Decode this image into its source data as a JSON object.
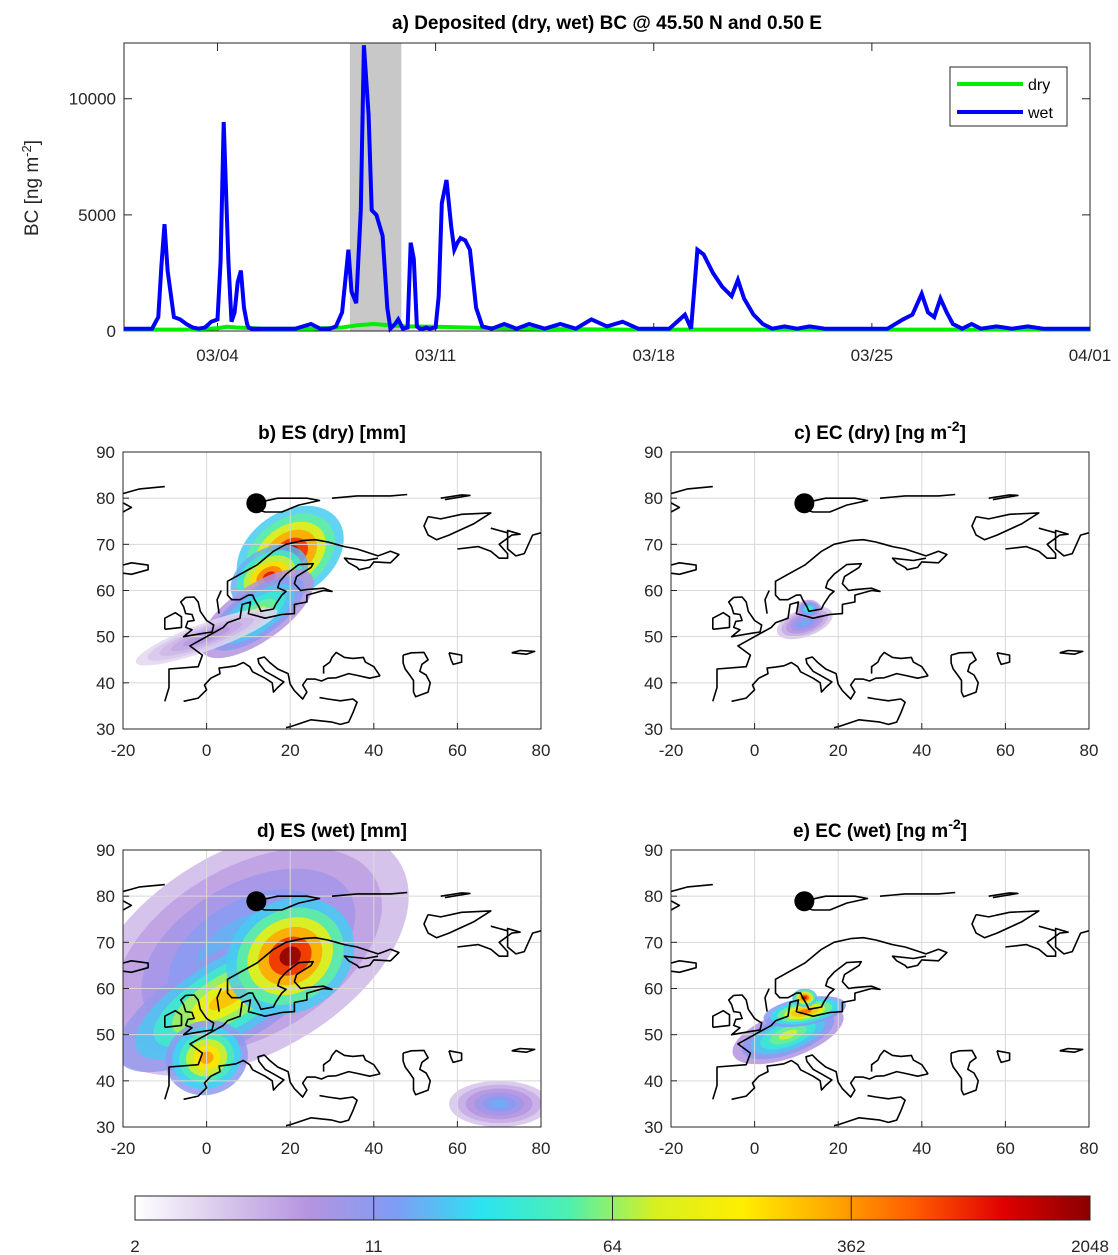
{
  "chart_data": [
    {
      "panel": "a",
      "type": "line",
      "title": "a) Deposited (dry, wet) BC @ 45.50 N and 0.50 E",
      "ylabel": "BC [ng m",
      "ylabel_sup": "-2",
      "ylabel_end": "]",
      "xlim": [
        0,
        31
      ],
      "ylim": [
        0,
        12400
      ],
      "x_ticks": [
        3,
        10,
        17,
        24,
        31
      ],
      "x_tick_labels": [
        "03/04",
        "03/11",
        "03/18",
        "03/25",
        "04/01"
      ],
      "y_ticks": [
        0,
        5000,
        10000
      ],
      "y_tick_labels": [
        "0",
        "5000",
        "10000"
      ],
      "highlight_span": [
        7.25,
        8.9
      ],
      "legend": {
        "position": "top-right",
        "entries": [
          "dry",
          "wet"
        ]
      },
      "series": [
        {
          "name": "wet",
          "color": "#0000ff",
          "x": [
            0,
            0.9,
            1.1,
            1.2,
            1.3,
            1.4,
            1.6,
            1.8,
            2.0,
            2.2,
            2.4,
            2.6,
            2.8,
            3.0,
            3.1,
            3.2,
            3.35,
            3.45,
            3.55,
            3.65,
            3.75,
            3.85,
            3.95,
            4.0,
            4.1,
            4.3,
            4.6,
            5.0,
            5.5,
            6.0,
            6.3,
            6.6,
            6.8,
            7.0,
            7.2,
            7.3,
            7.45,
            7.6,
            7.7,
            7.85,
            7.95,
            8.1,
            8.3,
            8.45,
            8.55,
            8.7,
            8.8,
            8.95,
            9.1,
            9.2,
            9.3,
            9.4,
            9.5,
            9.6,
            9.7,
            9.8,
            10.0,
            10.1,
            10.2,
            10.35,
            10.5,
            10.6,
            10.7,
            10.8,
            10.95,
            11.1,
            11.3,
            11.5,
            11.8,
            12.2,
            12.6,
            13.0,
            13.5,
            14.0,
            14.5,
            15.0,
            15.5,
            16.0,
            16.5,
            17.0,
            17.5,
            18.0,
            18.2,
            18.4,
            18.6,
            18.9,
            19.2,
            19.5,
            19.7,
            19.9,
            20.2,
            20.5,
            20.8,
            21.2,
            21.6,
            22.0,
            22.5,
            23.0,
            23.5,
            24.0,
            24.5,
            25.0,
            25.3,
            25.6,
            25.8,
            26.0,
            26.2,
            26.4,
            26.6,
            26.9,
            27.2,
            27.5,
            28.0,
            28.5,
            29.0,
            29.5,
            30.0,
            30.5,
            31.0
          ],
          "y": [
            100,
            100,
            600,
            2800,
            4600,
            2600,
            600,
            500,
            300,
            150,
            100,
            150,
            400,
            500,
            3000,
            9000,
            3000,
            400,
            800,
            2100,
            2600,
            1000,
            300,
            150,
            100,
            100,
            100,
            100,
            100,
            300,
            100,
            100,
            200,
            800,
            3500,
            1700,
            1200,
            5200,
            12300,
            9300,
            5200,
            5000,
            4100,
            1000,
            100,
            300,
            500,
            100,
            150,
            3800,
            3100,
            200,
            100,
            100,
            150,
            100,
            150,
            1500,
            5500,
            6500,
            4500,
            3500,
            3800,
            4000,
            3900,
            3500,
            1000,
            200,
            100,
            300,
            100,
            300,
            100,
            300,
            100,
            500,
            200,
            400,
            100,
            100,
            100,
            700,
            100,
            3500,
            3300,
            2500,
            1900,
            1500,
            2200,
            1400,
            700,
            300,
            100,
            200,
            100,
            200,
            100,
            100,
            100,
            100,
            100,
            500,
            700,
            1600,
            800,
            600,
            1400,
            800,
            300,
            100,
            300,
            100,
            200,
            100,
            200,
            100,
            100,
            100,
            100
          ]
        },
        {
          "name": "dry",
          "color": "#00ee00",
          "x": [
            0,
            2,
            3,
            3.3,
            3.6,
            4.5,
            6,
            7,
            7.5,
            8,
            8.5,
            9,
            10,
            11,
            12,
            14,
            16,
            18,
            20,
            22,
            24,
            26,
            28,
            31
          ],
          "y": [
            60,
            60,
            120,
            180,
            150,
            100,
            100,
            150,
            250,
            300,
            250,
            200,
            180,
            150,
            120,
            80,
            60,
            60,
            60,
            60,
            60,
            60,
            60,
            60
          ]
        }
      ]
    },
    {
      "panel": "b",
      "type": "heatmap",
      "title": "b) ES (dry) [mm]",
      "xlim": [
        -20,
        80
      ],
      "ylim": [
        30,
        90
      ],
      "x_tick_labels": [
        "-20",
        "0",
        "20",
        "40",
        "60",
        "80"
      ],
      "y_tick_labels": [
        "30",
        "40",
        "50",
        "60",
        "70",
        "80",
        "90"
      ],
      "marker": {
        "lon": 11.9,
        "lat": 78.9
      },
      "color_scale": "log2",
      "blobs": [
        {
          "lon": 20,
          "lat": 68,
          "rx": 14,
          "ry": 9,
          "rot": -35,
          "level": 1.0
        },
        {
          "lon": 15,
          "lat": 63,
          "rx": 10,
          "ry": 6,
          "rot": -30,
          "level": 0.9
        },
        {
          "lon": 12,
          "lat": 55,
          "rx": 16,
          "ry": 6,
          "rot": -35,
          "level": 0.55
        },
        {
          "lon": 0,
          "lat": 50,
          "rx": 18,
          "ry": 3,
          "rot": -20,
          "level": 0.2
        }
      ]
    },
    {
      "panel": "c",
      "type": "heatmap",
      "title": "c) EC (dry) [ng m",
      "title_sup": "-2",
      "title_end": "]",
      "xlim": [
        -20,
        80
      ],
      "ylim": [
        30,
        90
      ],
      "x_tick_labels": [
        "-20",
        "0",
        "20",
        "40",
        "60",
        "80"
      ],
      "y_tick_labels": [
        "30",
        "40",
        "50",
        "60",
        "70",
        "80",
        "90"
      ],
      "marker": {
        "lon": 11.9,
        "lat": 78.9
      },
      "color_scale": "log2",
      "blobs": [
        {
          "lon": 12,
          "lat": 53,
          "rx": 7,
          "ry": 3,
          "rot": -20,
          "level": 0.3
        },
        {
          "lon": 13,
          "lat": 56,
          "rx": 3,
          "ry": 2,
          "rot": 0,
          "level": 0.45
        }
      ]
    },
    {
      "panel": "d",
      "type": "heatmap",
      "title": "d) ES (wet) [mm]",
      "xlim": [
        -20,
        80
      ],
      "ylim": [
        30,
        90
      ],
      "x_tick_labels": [
        "-20",
        "0",
        "20",
        "40",
        "60",
        "80"
      ],
      "y_tick_labels": [
        "30",
        "40",
        "50",
        "60",
        "70",
        "80",
        "90"
      ],
      "marker": {
        "lon": 11.9,
        "lat": 78.9
      },
      "color_scale": "log2",
      "blobs": [
        {
          "lon": 10,
          "lat": 68,
          "rx": 42,
          "ry": 22,
          "rot": -30,
          "level": 0.35
        },
        {
          "lon": 5,
          "lat": 58,
          "rx": 30,
          "ry": 10,
          "rot": -30,
          "level": 0.7
        },
        {
          "lon": 20,
          "lat": 67,
          "rx": 16,
          "ry": 12,
          "rot": -30,
          "level": 1.0
        },
        {
          "lon": 0,
          "lat": 45,
          "rx": 10,
          "ry": 8,
          "rot": -20,
          "level": 0.75
        },
        {
          "lon": 70,
          "lat": 35,
          "rx": 12,
          "ry": 5,
          "rot": 0,
          "level": 0.3
        }
      ]
    },
    {
      "panel": "e",
      "type": "heatmap",
      "title": "e) EC (wet) [ng m",
      "title_sup": "-2",
      "title_end": "]",
      "xlim": [
        -20,
        80
      ],
      "ylim": [
        30,
        90
      ],
      "x_tick_labels": [
        "-20",
        "0",
        "20",
        "40",
        "60",
        "80"
      ],
      "y_tick_labels": [
        "30",
        "40",
        "50",
        "60",
        "70",
        "80",
        "90"
      ],
      "marker": {
        "lon": 11.9,
        "lat": 78.9
      },
      "color_scale": "log2",
      "blobs": [
        {
          "lon": 8,
          "lat": 50,
          "rx": 14,
          "ry": 5,
          "rot": -20,
          "level": 0.55
        },
        {
          "lon": 12,
          "lat": 55,
          "rx": 10,
          "ry": 3,
          "rot": -10,
          "level": 0.8
        },
        {
          "lon": 12,
          "lat": 58,
          "rx": 3,
          "ry": 2,
          "rot": 0,
          "level": 0.95
        }
      ]
    }
  ],
  "colorbar": {
    "tick_labels": [
      "2",
      "11",
      "64",
      "362",
      "2048"
    ],
    "stops": [
      "#ffffff",
      "#d8c8ec",
      "#b594e0",
      "#7f9cf5",
      "#2ce3f0",
      "#4ef0b0",
      "#d8f020",
      "#ffee00",
      "#ffaa00",
      "#ff5a00",
      "#e00000",
      "#8a0000"
    ]
  }
}
